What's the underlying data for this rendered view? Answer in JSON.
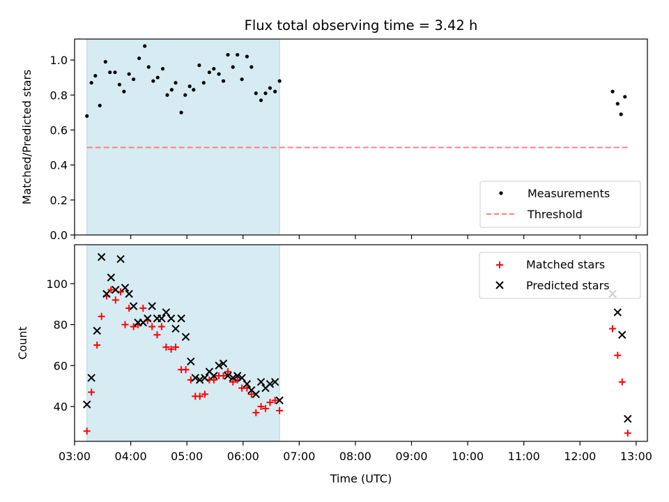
{
  "title": "Flux total observing time = 3.42 h",
  "colors": {
    "shade": "#add8e6",
    "threshold": "#ff7f7f",
    "matched": "#ff0000",
    "predicted": "#000000",
    "measurement": "#000000"
  },
  "chart_data": [
    {
      "type": "scatter",
      "ylabel": "Matched/Predicted stars",
      "xlim": [
        3.0,
        13.2
      ],
      "ylim": [
        0.0,
        1.12
      ],
      "yticks": [
        0.0,
        0.2,
        0.4,
        0.6,
        0.8,
        1.0
      ],
      "ytick_labels": [
        "0.0",
        "0.2",
        "0.4",
        "0.6",
        "0.8",
        "1.0"
      ],
      "shaded_span": [
        3.22,
        6.65
      ],
      "legend": {
        "placement": "lower-right",
        "entries": [
          "Measurements",
          "Threshold"
        ]
      },
      "threshold": {
        "name": "Threshold",
        "value": 0.5,
        "x_range": [
          3.22,
          12.85
        ]
      },
      "series": [
        {
          "name": "Measurements",
          "marker": "dot",
          "x": [
            3.22,
            3.3,
            3.37,
            3.45,
            3.55,
            3.63,
            3.72,
            3.8,
            3.88,
            3.97,
            4.05,
            4.15,
            4.25,
            4.32,
            4.4,
            4.48,
            4.57,
            4.65,
            4.73,
            4.8,
            4.9,
            4.97,
            5.05,
            5.12,
            5.22,
            5.3,
            5.4,
            5.48,
            5.57,
            5.65,
            5.73,
            5.82,
            5.9,
            5.98,
            6.07,
            6.15,
            6.23,
            6.32,
            6.4,
            6.48,
            6.57,
            6.65,
            12.58,
            12.67,
            12.73,
            12.8
          ],
          "y": [
            0.68,
            0.87,
            0.91,
            0.74,
            0.99,
            0.93,
            0.93,
            0.86,
            0.82,
            0.92,
            0.89,
            1.01,
            1.08,
            0.96,
            0.88,
            0.9,
            0.95,
            0.8,
            0.83,
            0.87,
            0.7,
            0.8,
            0.85,
            0.83,
            0.97,
            0.87,
            0.93,
            0.95,
            0.92,
            0.88,
            1.03,
            0.96,
            1.03,
            0.89,
            1.02,
            0.96,
            0.81,
            0.77,
            0.81,
            0.84,
            0.82,
            0.88,
            0.82,
            0.75,
            0.69,
            0.79
          ]
        }
      ]
    },
    {
      "type": "scatter",
      "xlabel": "Time (UTC)",
      "ylabel": "Count",
      "xlim": [
        3.0,
        13.2
      ],
      "ylim": [
        23,
        119
      ],
      "yticks": [
        40,
        60,
        80,
        100
      ],
      "ytick_labels": [
        "40",
        "60",
        "80",
        "100"
      ],
      "xticks": [
        3,
        4,
        5,
        6,
        7,
        8,
        9,
        10,
        11,
        12,
        13
      ],
      "xtick_labels": [
        "03:00",
        "04:00",
        "05:00",
        "06:00",
        "07:00",
        "08:00",
        "09:00",
        "10:00",
        "11:00",
        "12:00",
        "13:00"
      ],
      "shaded_span": [
        3.22,
        6.65
      ],
      "legend": {
        "placement": "top-right",
        "entries": [
          "Matched stars",
          "Predicted stars"
        ]
      },
      "series": [
        {
          "name": "Matched stars",
          "marker": "plus",
          "x": [
            3.22,
            3.3,
            3.4,
            3.48,
            3.57,
            3.65,
            3.73,
            3.82,
            3.9,
            3.97,
            4.05,
            4.13,
            4.22,
            4.3,
            4.38,
            4.47,
            4.55,
            4.63,
            4.72,
            4.8,
            4.9,
            4.98,
            5.07,
            5.15,
            5.23,
            5.32,
            5.4,
            5.48,
            5.57,
            5.65,
            5.73,
            5.82,
            5.9,
            5.98,
            6.07,
            6.15,
            6.23,
            6.32,
            6.4,
            6.48,
            6.57,
            6.65,
            12.58,
            12.67,
            12.75,
            12.85
          ],
          "y": [
            28,
            47,
            70,
            84,
            94,
            97,
            92,
            96,
            80,
            88,
            79,
            80,
            88,
            82,
            79,
            75,
            79,
            69,
            68,
            69,
            58,
            58,
            53,
            45,
            45,
            46,
            53,
            53,
            55,
            55,
            57,
            52,
            53,
            49,
            49,
            46,
            37,
            40,
            39,
            42,
            43,
            38,
            78,
            65,
            52,
            27
          ]
        },
        {
          "name": "Predicted stars",
          "marker": "x",
          "x": [
            3.22,
            3.3,
            3.4,
            3.48,
            3.57,
            3.65,
            3.73,
            3.82,
            3.9,
            3.97,
            4.05,
            4.13,
            4.22,
            4.3,
            4.38,
            4.47,
            4.55,
            4.63,
            4.72,
            4.8,
            4.9,
            4.98,
            5.07,
            5.15,
            5.23,
            5.32,
            5.4,
            5.48,
            5.57,
            5.65,
            5.73,
            5.82,
            5.9,
            5.98,
            6.07,
            6.15,
            6.23,
            6.32,
            6.4,
            6.48,
            6.57,
            6.65,
            12.58,
            12.67,
            12.75,
            12.85
          ],
          "y": [
            41,
            54,
            77,
            113,
            95,
            103,
            97,
            112,
            98,
            95,
            89,
            81,
            81,
            83,
            89,
            83,
            83,
            86,
            83,
            78,
            83,
            74,
            62,
            54,
            53,
            54,
            57,
            55,
            60,
            61,
            55,
            54,
            55,
            54,
            51,
            48,
            46,
            52,
            49,
            51,
            52,
            43,
            95,
            86,
            75,
            34
          ]
        }
      ]
    }
  ]
}
